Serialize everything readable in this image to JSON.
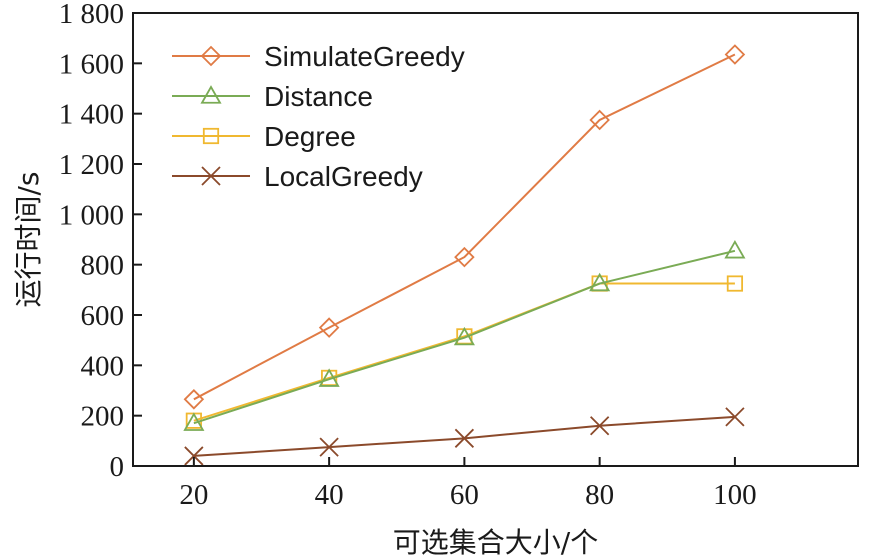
{
  "chart_data": {
    "type": "line",
    "title": "",
    "xlabel": "可选集合大小/个",
    "ylabel": "运行时间/s",
    "categories": [
      20,
      40,
      60,
      80,
      100
    ],
    "x_tick_labels": [
      "20",
      "40",
      "60",
      "80",
      "100"
    ],
    "ylim": [
      0,
      1800
    ],
    "y_ticks": [
      0,
      200,
      400,
      600,
      800,
      1000,
      1200,
      1400,
      1600,
      1800
    ],
    "y_tick_labels": [
      "0",
      "200",
      "400",
      "600",
      "800",
      "1 000",
      "1 200",
      "1 400",
      "1 600",
      "1 800"
    ],
    "legend_position": "top-left",
    "series": [
      {
        "name": "SimulateGreedy",
        "marker": "diamond",
        "color": "#e07b45",
        "values": [
          265,
          550,
          830,
          1375,
          1635
        ]
      },
      {
        "name": "Distance",
        "marker": "triangle",
        "color": "#7aab55",
        "values": [
          170,
          345,
          510,
          725,
          855
        ]
      },
      {
        "name": "Degree",
        "marker": "square",
        "color": "#f0b830",
        "values": [
          180,
          350,
          515,
          725,
          725
        ]
      },
      {
        "name": "LocalGreedy",
        "marker": "x",
        "color": "#8b4a2b",
        "values": [
          40,
          75,
          110,
          160,
          195
        ]
      }
    ]
  }
}
